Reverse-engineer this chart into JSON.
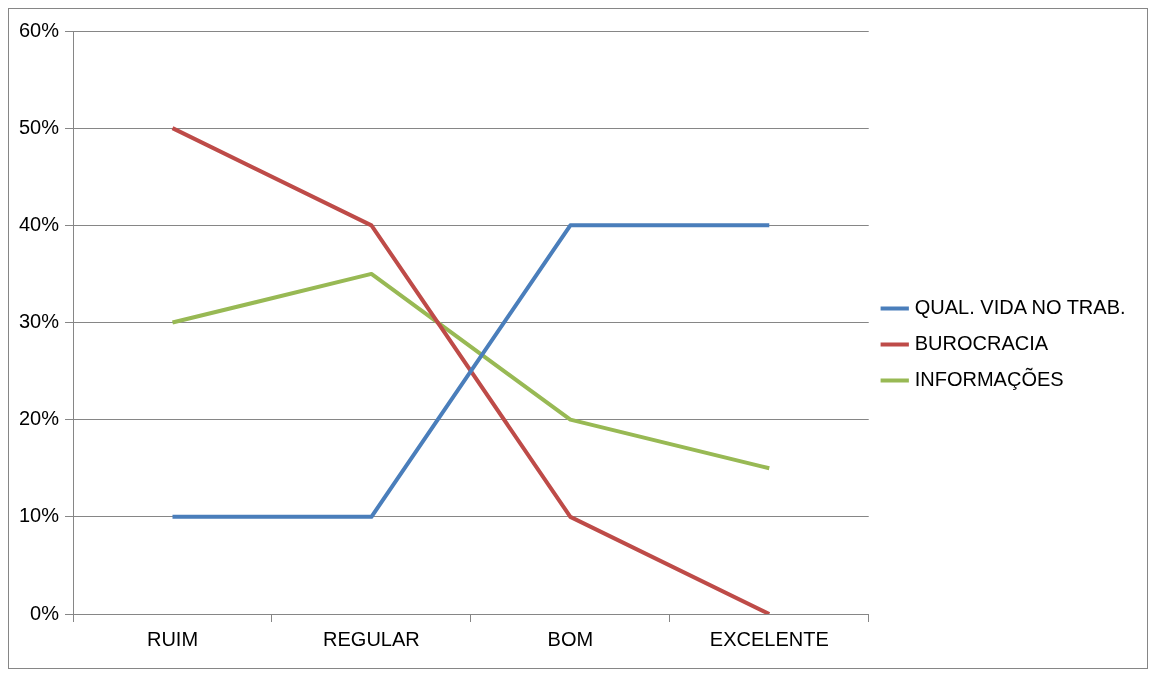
{
  "chart_data": {
    "type": "line",
    "categories": [
      "RUIM",
      "REGULAR",
      "BOM",
      "EXCELENTE"
    ],
    "series": [
      {
        "name": "QUAL. VIDA NO TRAB.",
        "color": "#4a7ebb",
        "values": [
          10,
          10,
          40,
          40
        ]
      },
      {
        "name": "BUROCRACIA",
        "color": "#be4b48",
        "values": [
          50,
          40,
          10,
          0
        ]
      },
      {
        "name": "INFORMAÇÕES",
        "color": "#98b954",
        "values": [
          30,
          35,
          20,
          15
        ]
      }
    ],
    "ylim": [
      0,
      60
    ],
    "yticks": [
      {
        "value": 0,
        "label": "0%"
      },
      {
        "value": 10,
        "label": "10%"
      },
      {
        "value": 20,
        "label": "20%"
      },
      {
        "value": 30,
        "label": "30%"
      },
      {
        "value": 40,
        "label": "40%"
      },
      {
        "value": 50,
        "label": "50%"
      },
      {
        "value": 60,
        "label": "60%"
      }
    ],
    "grid": "y",
    "legend": "right",
    "marker": "none",
    "line_style": "solid"
  }
}
